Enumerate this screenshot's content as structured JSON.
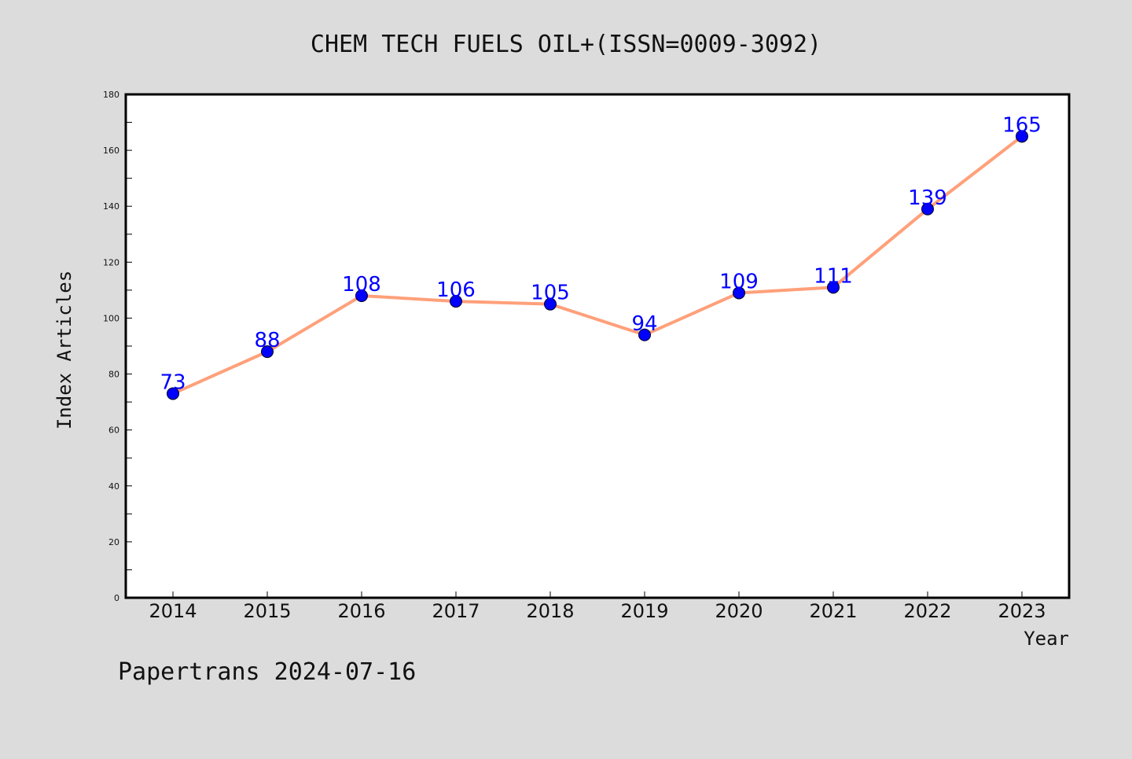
{
  "chart_data": {
    "type": "line",
    "title": "CHEM TECH FUELS OIL+(ISSN=0009-3092)",
    "xlabel": "Year",
    "ylabel": "Index Articles",
    "categories": [
      "2014",
      "2015",
      "2016",
      "2017",
      "2018",
      "2019",
      "2020",
      "2021",
      "2022",
      "2023"
    ],
    "series": [
      {
        "values": [
          73,
          88,
          108,
          106,
          105,
          94,
          109,
          111,
          139,
          165
        ]
      }
    ],
    "ylim": [
      0,
      180
    ],
    "yticks": [
      "0",
      "20",
      "40",
      "60",
      "80",
      "100",
      "120",
      "140",
      "160",
      "180"
    ],
    "grid": false,
    "line_color": "#ffa07a",
    "marker_color": "#0000ff",
    "label_color": "#0000ff"
  },
  "footer": {
    "text": "Papertrans 2024-07-16"
  }
}
